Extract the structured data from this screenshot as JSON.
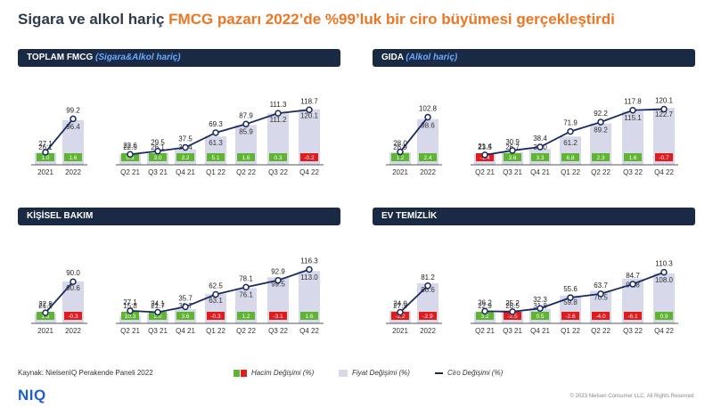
{
  "title_main": "Sigara ve alkol hariç",
  "title_highlight": "FMCG pazarı 2022’de %99’luk bir ciro büyümesi gerçekleştirdi",
  "chart_data": [
    {
      "type": "bar",
      "title": "TOPLAM FMCG",
      "subtitle": "(Sigara&Alkol hariç)",
      "categories": [
        "2021",
        "2022",
        "Q2 21",
        "Q3 21",
        "Q4 21",
        "Q1 22",
        "Q2 22",
        "Q3 22",
        "Q4 22"
      ],
      "fiyat": [
        26.1,
        96.4,
        22.5,
        26.1,
        33.4,
        61.3,
        85.9,
        111.2,
        120.1
      ],
      "hacim": [
        1.0,
        1.6,
        0.5,
        3.0,
        3.2,
        5.1,
        1.6,
        0.3,
        -0.2
      ],
      "ciro": [
        27.1,
        99.2,
        22.6,
        29.5,
        37.5,
        69.3,
        87.9,
        111.3,
        118.7
      ]
    },
    {
      "type": "bar",
      "title": "GIDA",
      "subtitle": "(Alkol hariç)",
      "categories": [
        "2021",
        "2022",
        "Q2 21",
        "Q3 21",
        "Q4 21",
        "Q1 22",
        "Q2 22",
        "Q3 22",
        "Q4 22"
      ],
      "fiyat": [
        26.9,
        98.6,
        23.5,
        26.7,
        34.0,
        61.2,
        89.2,
        115.1,
        122.7
      ],
      "hacim": [
        1.2,
        2.4,
        -1.4,
        3.6,
        3.3,
        6.8,
        2.3,
        1.6,
        -0.7
      ],
      "ciro": [
        28.0,
        102.8,
        21.4,
        30.9,
        38.4,
        71.9,
        92.2,
        117.8,
        120.1
      ]
    },
    {
      "type": "bar",
      "title": "KİŞİSEL BAKIM",
      "subtitle": "",
      "categories": [
        "2021",
        "2022",
        "Q2 21",
        "Q3 21",
        "Q4 21",
        "Q1 22",
        "Q2 22",
        "Q3 22",
        "Q4 22"
      ],
      "fiyat": [
        21.1,
        90.6,
        15.8,
        21.7,
        30.7,
        63.1,
        76.1,
        99.5,
        113.0
      ],
      "hacim": [
        1.5,
        -0.3,
        10.3,
        2.0,
        3.6,
        -0.3,
        1.2,
        -3.1,
        1.6
      ],
      "ciro": [
        22.8,
        90.0,
        27.1,
        24.1,
        35.7,
        62.5,
        78.1,
        92.9,
        116.3
      ]
    },
    {
      "type": "bar",
      "title": "EV TEMİZLİK",
      "subtitle": "",
      "categories": [
        "2021",
        "2022",
        "Q2 21",
        "Q3 21",
        "Q4 21",
        "Q1 22",
        "Q2 22",
        "Q3 22",
        "Q4 22"
      ],
      "fiyat": [
        27.3,
        86.6,
        22.9,
        28.5,
        31.8,
        59.8,
        70.5,
        96.8,
        108.0
      ],
      "hacim": [
        -2.2,
        -2.9,
        3.2,
        -2.5,
        0.5,
        -2.6,
        -4.0,
        -6.1,
        0.9
      ],
      "ciro": [
        24.0,
        81.2,
        26.2,
        25.2,
        32.3,
        55.6,
        63.7,
        84.7,
        110.3
      ]
    }
  ],
  "colors": {
    "title_main": "#2f3a4a",
    "title_highlight": "#ee7623",
    "header_bg": "#1a2a44",
    "bar_fiyat": "#d7d8ea",
    "hacim_positive": "#5fb432",
    "hacim_negative": "#e11c1c",
    "ciro_line": "#1a2a5e"
  },
  "source": "Kaynak: NielsenIQ Perakende Paneli 2022",
  "legend": {
    "hacim": "Hacim Değişimi (%)",
    "fiyat": "Fiyat Değişimi (%)",
    "ciro": "Ciro Değişimi (%)"
  },
  "logo": "NIQ",
  "copyright": "© 2023 Nielsen Consumer LLC. All Rights Reserved."
}
